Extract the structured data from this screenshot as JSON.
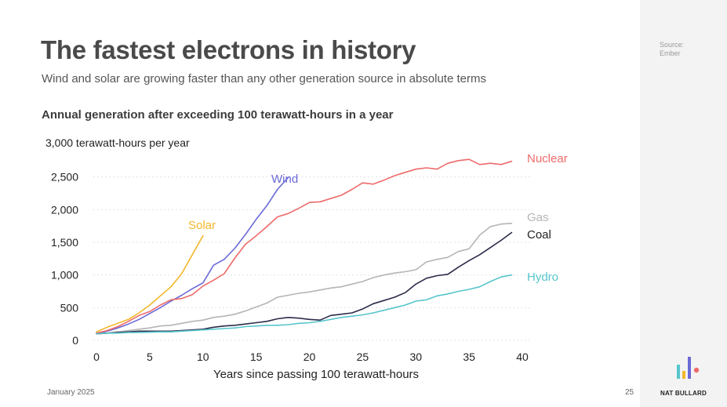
{
  "slide": {
    "title": "The fastest electrons in history",
    "subtitle": "Wind and solar are growing faster than any other generation source in absolute terms",
    "source_label": "Source:",
    "source_name": "Ember",
    "date": "January 2025",
    "page_number": "25",
    "brand": "NAT BULLARD"
  },
  "chart_data": {
    "type": "line",
    "title": "Annual generation after exceeding 100 terawatt-hours in a year",
    "unit_label": "3,000 terawatt-hours per year",
    "xlabel": "Years since passing 100 terawatt-hours",
    "ylabel": "",
    "xlim": [
      0,
      40
    ],
    "ylim": [
      0,
      3000
    ],
    "x_ticks": [
      0,
      5,
      10,
      15,
      20,
      25,
      30,
      35,
      40
    ],
    "y_ticks": [
      0,
      500,
      1000,
      1500,
      2000,
      2500
    ],
    "y_tick_labels": [
      "0",
      "500",
      "1,000",
      "1,500",
      "2,000",
      "2,500"
    ],
    "grid": true,
    "series": [
      {
        "name": "Solar",
        "color": "#f2b72b",
        "x": [
          0,
          1,
          2,
          3,
          4,
          5,
          6,
          7,
          8,
          9,
          10
        ],
        "y": [
          130,
          200,
          260,
          320,
          420,
          540,
          680,
          820,
          1020,
          1310,
          1600
        ]
      },
      {
        "name": "Wind",
        "color": "#6a6ad6",
        "x": [
          0,
          1,
          2,
          3,
          4,
          5,
          6,
          7,
          8,
          9,
          10,
          11,
          12,
          13,
          14,
          15,
          16,
          17,
          18
        ],
        "y": [
          100,
          140,
          190,
          250,
          320,
          410,
          500,
          600,
          690,
          790,
          880,
          1150,
          1240,
          1410,
          1620,
          1850,
          2060,
          2310,
          2490
        ]
      },
      {
        "name": "Nuclear",
        "color": "#ee6a6a",
        "x": [
          0,
          1,
          2,
          3,
          4,
          5,
          6,
          7,
          8,
          9,
          10,
          11,
          12,
          13,
          14,
          15,
          16,
          17,
          18,
          19,
          20,
          21,
          22,
          23,
          24,
          25,
          26,
          27,
          28,
          29,
          30,
          31,
          32,
          33,
          34,
          35,
          36,
          37,
          38,
          39
        ],
        "y": [
          110,
          150,
          210,
          290,
          380,
          440,
          540,
          620,
          640,
          700,
          830,
          920,
          1020,
          1260,
          1470,
          1600,
          1740,
          1890,
          1940,
          2020,
          2110,
          2120,
          2170,
          2220,
          2310,
          2410,
          2390,
          2450,
          2520,
          2570,
          2620,
          2640,
          2620,
          2710,
          2750,
          2770,
          2690,
          2710,
          2690,
          2740
        ]
      },
      {
        "name": "Gas",
        "color": "#b5b5b5",
        "x": [
          0,
          1,
          2,
          3,
          4,
          5,
          6,
          7,
          8,
          9,
          10,
          11,
          12,
          13,
          14,
          15,
          16,
          17,
          18,
          19,
          20,
          21,
          22,
          23,
          24,
          25,
          26,
          27,
          28,
          29,
          30,
          31,
          32,
          33,
          34,
          35,
          36,
          37,
          38,
          39
        ],
        "y": [
          100,
          110,
          130,
          150,
          170,
          190,
          220,
          230,
          260,
          290,
          310,
          350,
          370,
          400,
          450,
          510,
          570,
          660,
          690,
          720,
          740,
          770,
          800,
          820,
          860,
          900,
          960,
          1000,
          1030,
          1050,
          1080,
          1200,
          1240,
          1270,
          1360,
          1400,
          1610,
          1740,
          1780,
          1790
        ]
      },
      {
        "name": "Coal",
        "color": "#2b2b4a",
        "x": [
          0,
          1,
          2,
          3,
          4,
          5,
          6,
          7,
          8,
          9,
          10,
          11,
          12,
          13,
          14,
          15,
          16,
          17,
          18,
          19,
          20,
          21,
          22,
          23,
          24,
          25,
          26,
          27,
          28,
          29,
          30,
          31,
          32,
          33,
          34,
          35,
          36,
          37,
          38,
          39
        ],
        "y": [
          100,
          110,
          120,
          130,
          140,
          140,
          140,
          140,
          150,
          160,
          170,
          200,
          220,
          230,
          250,
          270,
          290,
          330,
          350,
          340,
          320,
          310,
          380,
          400,
          420,
          480,
          560,
          610,
          660,
          730,
          860,
          950,
          990,
          1010,
          1120,
          1220,
          1310,
          1420,
          1530,
          1650
        ]
      },
      {
        "name": "Hydro",
        "color": "#56c5cc",
        "x": [
          0,
          1,
          2,
          3,
          4,
          5,
          6,
          7,
          8,
          9,
          10,
          11,
          12,
          13,
          14,
          15,
          16,
          17,
          18,
          19,
          20,
          21,
          22,
          23,
          24,
          25,
          26,
          27,
          28,
          29,
          30,
          31,
          32,
          33,
          34,
          35,
          36,
          37,
          38,
          39
        ],
        "y": [
          100,
          110,
          110,
          120,
          120,
          125,
          130,
          130,
          140,
          150,
          160,
          170,
          180,
          190,
          210,
          220,
          230,
          230,
          240,
          260,
          270,
          290,
          320,
          350,
          370,
          390,
          420,
          460,
          500,
          540,
          600,
          620,
          680,
          710,
          750,
          780,
          820,
          900,
          970,
          1000
        ]
      }
    ]
  }
}
